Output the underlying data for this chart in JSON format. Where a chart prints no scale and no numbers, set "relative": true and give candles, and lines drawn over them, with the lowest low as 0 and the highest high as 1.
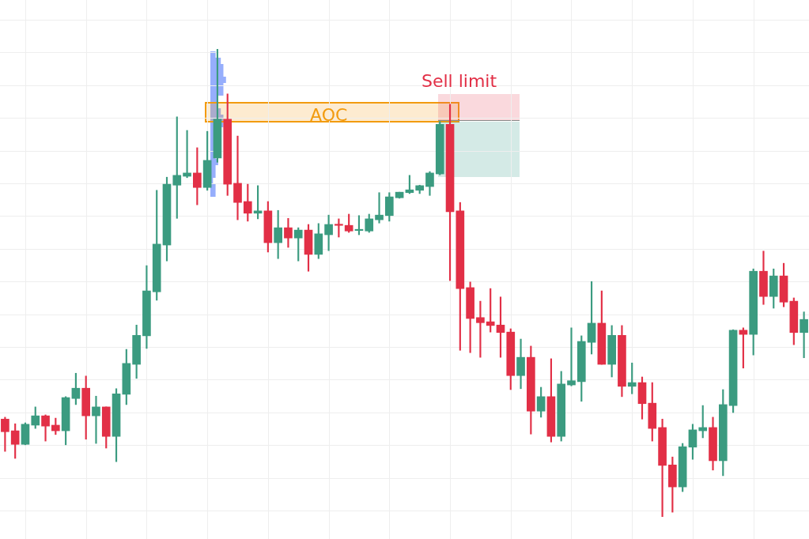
{
  "chart_data": {
    "type": "candlestick",
    "relative": true,
    "grid": true,
    "categories": [
      null,
      null,
      null,
      null,
      null,
      null,
      null,
      null,
      null,
      null,
      null,
      null,
      null,
      null,
      null,
      null,
      null,
      null,
      null,
      null,
      null,
      null,
      null,
      null,
      null,
      null,
      null,
      null,
      null,
      null,
      null,
      null,
      null,
      null,
      null,
      null,
      null,
      null,
      null,
      null,
      null,
      null,
      null,
      null,
      null,
      null,
      null,
      null,
      null,
      null,
      null,
      null,
      null,
      null,
      null,
      null,
      null,
      null,
      null,
      null,
      null,
      null,
      null,
      null,
      null,
      null,
      null,
      null,
      null,
      null,
      null,
      null,
      null,
      null,
      null,
      null,
      null,
      null,
      null,
      null
    ],
    "ohlc": [
      [
        0.209,
        0.213,
        0.14,
        0.182
      ],
      [
        0.184,
        0.199,
        0.125,
        0.155
      ],
      [
        0.155,
        0.201,
        0.154,
        0.198
      ],
      [
        0.196,
        0.235,
        0.189,
        0.216
      ],
      [
        0.216,
        0.218,
        0.162,
        0.194
      ],
      [
        0.196,
        0.211,
        0.176,
        0.184
      ],
      [
        0.184,
        0.257,
        0.154,
        0.255
      ],
      [
        0.253,
        0.307,
        0.24,
        0.275
      ],
      [
        0.275,
        0.301,
        0.166,
        0.216
      ],
      [
        0.216,
        0.258,
        0.157,
        0.235
      ],
      [
        0.235,
        0.235,
        0.147,
        0.172
      ],
      [
        0.172,
        0.274,
        0.118,
        0.263
      ],
      [
        0.262,
        0.358,
        0.24,
        0.328
      ],
      [
        0.326,
        0.41,
        0.296,
        0.388
      ],
      [
        0.387,
        0.537,
        0.36,
        0.483
      ],
      [
        0.481,
        0.698,
        0.463,
        0.583
      ],
      [
        0.581,
        0.726,
        0.547,
        0.711
      ],
      [
        0.709,
        0.855,
        0.638,
        0.73
      ],
      [
        0.728,
        0.826,
        0.725,
        0.735
      ],
      [
        0.735,
        0.789,
        0.667,
        0.704
      ],
      [
        0.704,
        0.824,
        0.698,
        0.762
      ],
      [
        0.767,
        1,
        0.758,
        0.85
      ],
      [
        0.85,
        0.904,
        0.687,
        0.711
      ],
      [
        0.713,
        0.814,
        0.635,
        0.672
      ],
      [
        0.674,
        0.711,
        0.632,
        0.649
      ],
      [
        0.649,
        0.708,
        0.637,
        0.654
      ],
      [
        0.654,
        0.674,
        0.566,
        0.586
      ],
      [
        0.586,
        0.655,
        0.552,
        0.618
      ],
      [
        0.618,
        0.638,
        0.576,
        0.596
      ],
      [
        0.596,
        0.618,
        0.547,
        0.613
      ],
      [
        0.613,
        0.625,
        0.525,
        0.561
      ],
      [
        0.561,
        0.627,
        0.552,
        0.605
      ],
      [
        0.603,
        0.645,
        0.569,
        0.625
      ],
      [
        0.625,
        0.637,
        0.598,
        0.623
      ],
      [
        0.623,
        0.647,
        0.608,
        0.611
      ],
      [
        0.612,
        0.644,
        0.603,
        0.613
      ],
      [
        0.611,
        0.647,
        0.608,
        0.637
      ],
      [
        0.635,
        0.693,
        0.628,
        0.645
      ],
      [
        0.644,
        0.693,
        0.632,
        0.684
      ],
      [
        0.682,
        0.694,
        0.681,
        0.694
      ],
      [
        0.693,
        0.73,
        0.691,
        0.699
      ],
      [
        0.698,
        0.709,
        0.691,
        0.708
      ],
      [
        0.706,
        0.738,
        0.687,
        0.735
      ],
      [
        0.733,
        0.845,
        0.731,
        0.839
      ],
      [
        0.839,
        0.882,
        0.505,
        0.652
      ],
      [
        0.654,
        0.672,
        0.356,
        0.488
      ],
      [
        0.49,
        0.502,
        0.351,
        0.424
      ],
      [
        0.426,
        0.461,
        0.341,
        0.415
      ],
      [
        0.417,
        0.488,
        0.395,
        0.409
      ],
      [
        0.41,
        0.47,
        0.341,
        0.394
      ],
      [
        0.395,
        0.402,
        0.272,
        0.302
      ],
      [
        0.302,
        0.38,
        0.274,
        0.341
      ],
      [
        0.341,
        0.365,
        0.177,
        0.226
      ],
      [
        0.226,
        0.277,
        0.213,
        0.257
      ],
      [
        0.257,
        0.338,
        0.16,
        0.172
      ],
      [
        0.172,
        0.311,
        0.162,
        0.284
      ],
      [
        0.282,
        0.404,
        0.28,
        0.291
      ],
      [
        0.289,
        0.387,
        0.247,
        0.375
      ],
      [
        0.373,
        0.503,
        0.348,
        0.414
      ],
      [
        0.414,
        0.483,
        0.326,
        0.326
      ],
      [
        0.326,
        0.409,
        0.299,
        0.388
      ],
      [
        0.388,
        0.409,
        0.257,
        0.279
      ],
      [
        0.279,
        0.329,
        0.263,
        0.287
      ],
      [
        0.287,
        0.299,
        0.209,
        0.242
      ],
      [
        0.243,
        0.287,
        0.162,
        0.189
      ],
      [
        0.191,
        0.209,
        0,
        0.11
      ],
      [
        0.111,
        0.128,
        0.01,
        0.064
      ],
      [
        0.064,
        0.157,
        0.054,
        0.15
      ],
      [
        0.149,
        0.198,
        0.123,
        0.186
      ],
      [
        0.184,
        0.238,
        0.169,
        0.191
      ],
      [
        0.191,
        0.213,
        0.1,
        0.12
      ],
      [
        0.12,
        0.272,
        0.088,
        0.24
      ],
      [
        0.238,
        0.4,
        0.223,
        0.399
      ],
      [
        0.399,
        0.404,
        0.318,
        0.39
      ],
      [
        0.39,
        0.53,
        0.346,
        0.525
      ],
      [
        0.525,
        0.568,
        0.454,
        0.471
      ],
      [
        0.471,
        0.53,
        0.446,
        0.515
      ],
      [
        0.515,
        0.542,
        0.449,
        0.459
      ],
      [
        0.461,
        0.468,
        0.368,
        0.394
      ],
      [
        0.394,
        0.438,
        0.34,
        0.422
      ]
    ],
    "annotations": [
      "Sell limit",
      "AOC"
    ]
  }
}
